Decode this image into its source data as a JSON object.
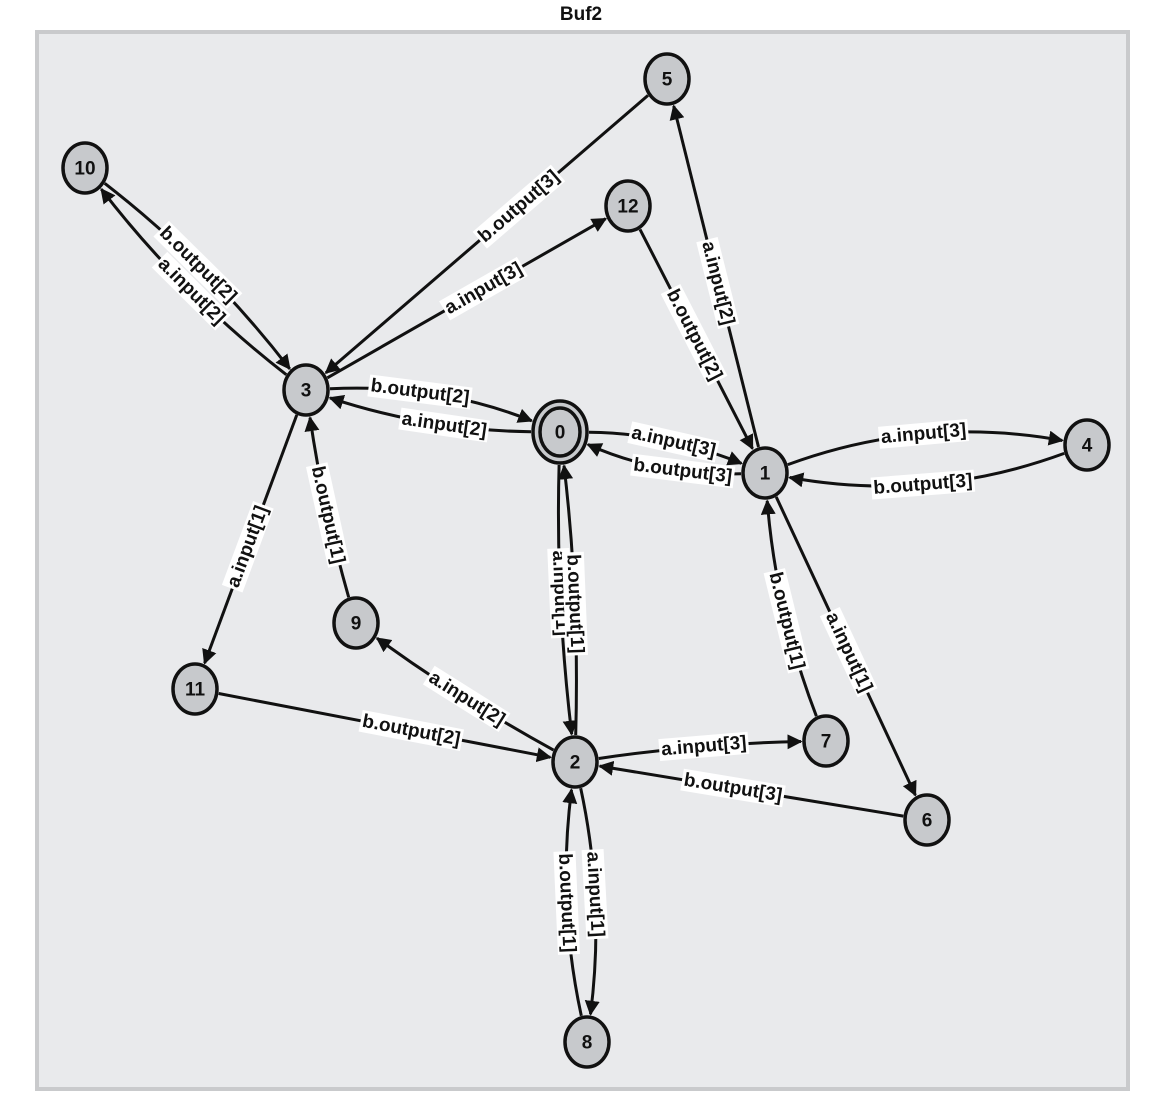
{
  "title": "Buf2",
  "colors": {
    "panel_fill": "#e9eaec",
    "panel_border": "#c9cacc",
    "node_fill": "#c7c9cc",
    "initial_node_fill": "#3b8fd6",
    "edge": "#111111",
    "label_bg": "#ffffff"
  },
  "nodes": [
    {
      "id": "0",
      "initial": true
    },
    {
      "id": "1"
    },
    {
      "id": "2"
    },
    {
      "id": "3"
    },
    {
      "id": "4"
    },
    {
      "id": "5"
    },
    {
      "id": "6"
    },
    {
      "id": "7"
    },
    {
      "id": "8"
    },
    {
      "id": "9"
    },
    {
      "id": "10"
    },
    {
      "id": "11"
    },
    {
      "id": "12"
    }
  ],
  "edges": [
    {
      "from": "3",
      "to": "0",
      "label": "b.output[2]"
    },
    {
      "from": "0",
      "to": "3",
      "label": "a.input[2]"
    },
    {
      "from": "1",
      "to": "0",
      "label": "b.output[3]"
    },
    {
      "from": "0",
      "to": "1",
      "label": "a.input[3]"
    },
    {
      "from": "0",
      "to": "2",
      "label": "a.input[1]"
    },
    {
      "from": "2",
      "to": "0",
      "label": "b.output[1]"
    },
    {
      "from": "1",
      "to": "4",
      "label": "a.input[3]"
    },
    {
      "from": "4",
      "to": "1",
      "label": "b.output[3]"
    },
    {
      "from": "1",
      "to": "5",
      "label": "a.input[2]"
    },
    {
      "from": "12",
      "to": "1",
      "label": "b.output[2]"
    },
    {
      "from": "1",
      "to": "6",
      "label": "a.input[1]"
    },
    {
      "from": "7",
      "to": "1",
      "label": "b.output[1]"
    },
    {
      "from": "5",
      "to": "3",
      "label": "b.output[3]"
    },
    {
      "from": "3",
      "to": "12",
      "label": "a.input[3]"
    },
    {
      "from": "10",
      "to": "3",
      "label": "b.output[2]"
    },
    {
      "from": "3",
      "to": "10",
      "label": "a.input[2]"
    },
    {
      "from": "3",
      "to": "11",
      "label": "a.input[1]"
    },
    {
      "from": "9",
      "to": "3",
      "label": "b.output[1]"
    },
    {
      "from": "2",
      "to": "9",
      "label": "a.input[2]"
    },
    {
      "from": "11",
      "to": "2",
      "label": "b.output[2]"
    },
    {
      "from": "2",
      "to": "7",
      "label": "a.input[3]"
    },
    {
      "from": "6",
      "to": "2",
      "label": "b.output[3]"
    },
    {
      "from": "8",
      "to": "2",
      "label": "b.output[1]"
    },
    {
      "from": "2",
      "to": "8",
      "label": "a.input[1]"
    }
  ]
}
